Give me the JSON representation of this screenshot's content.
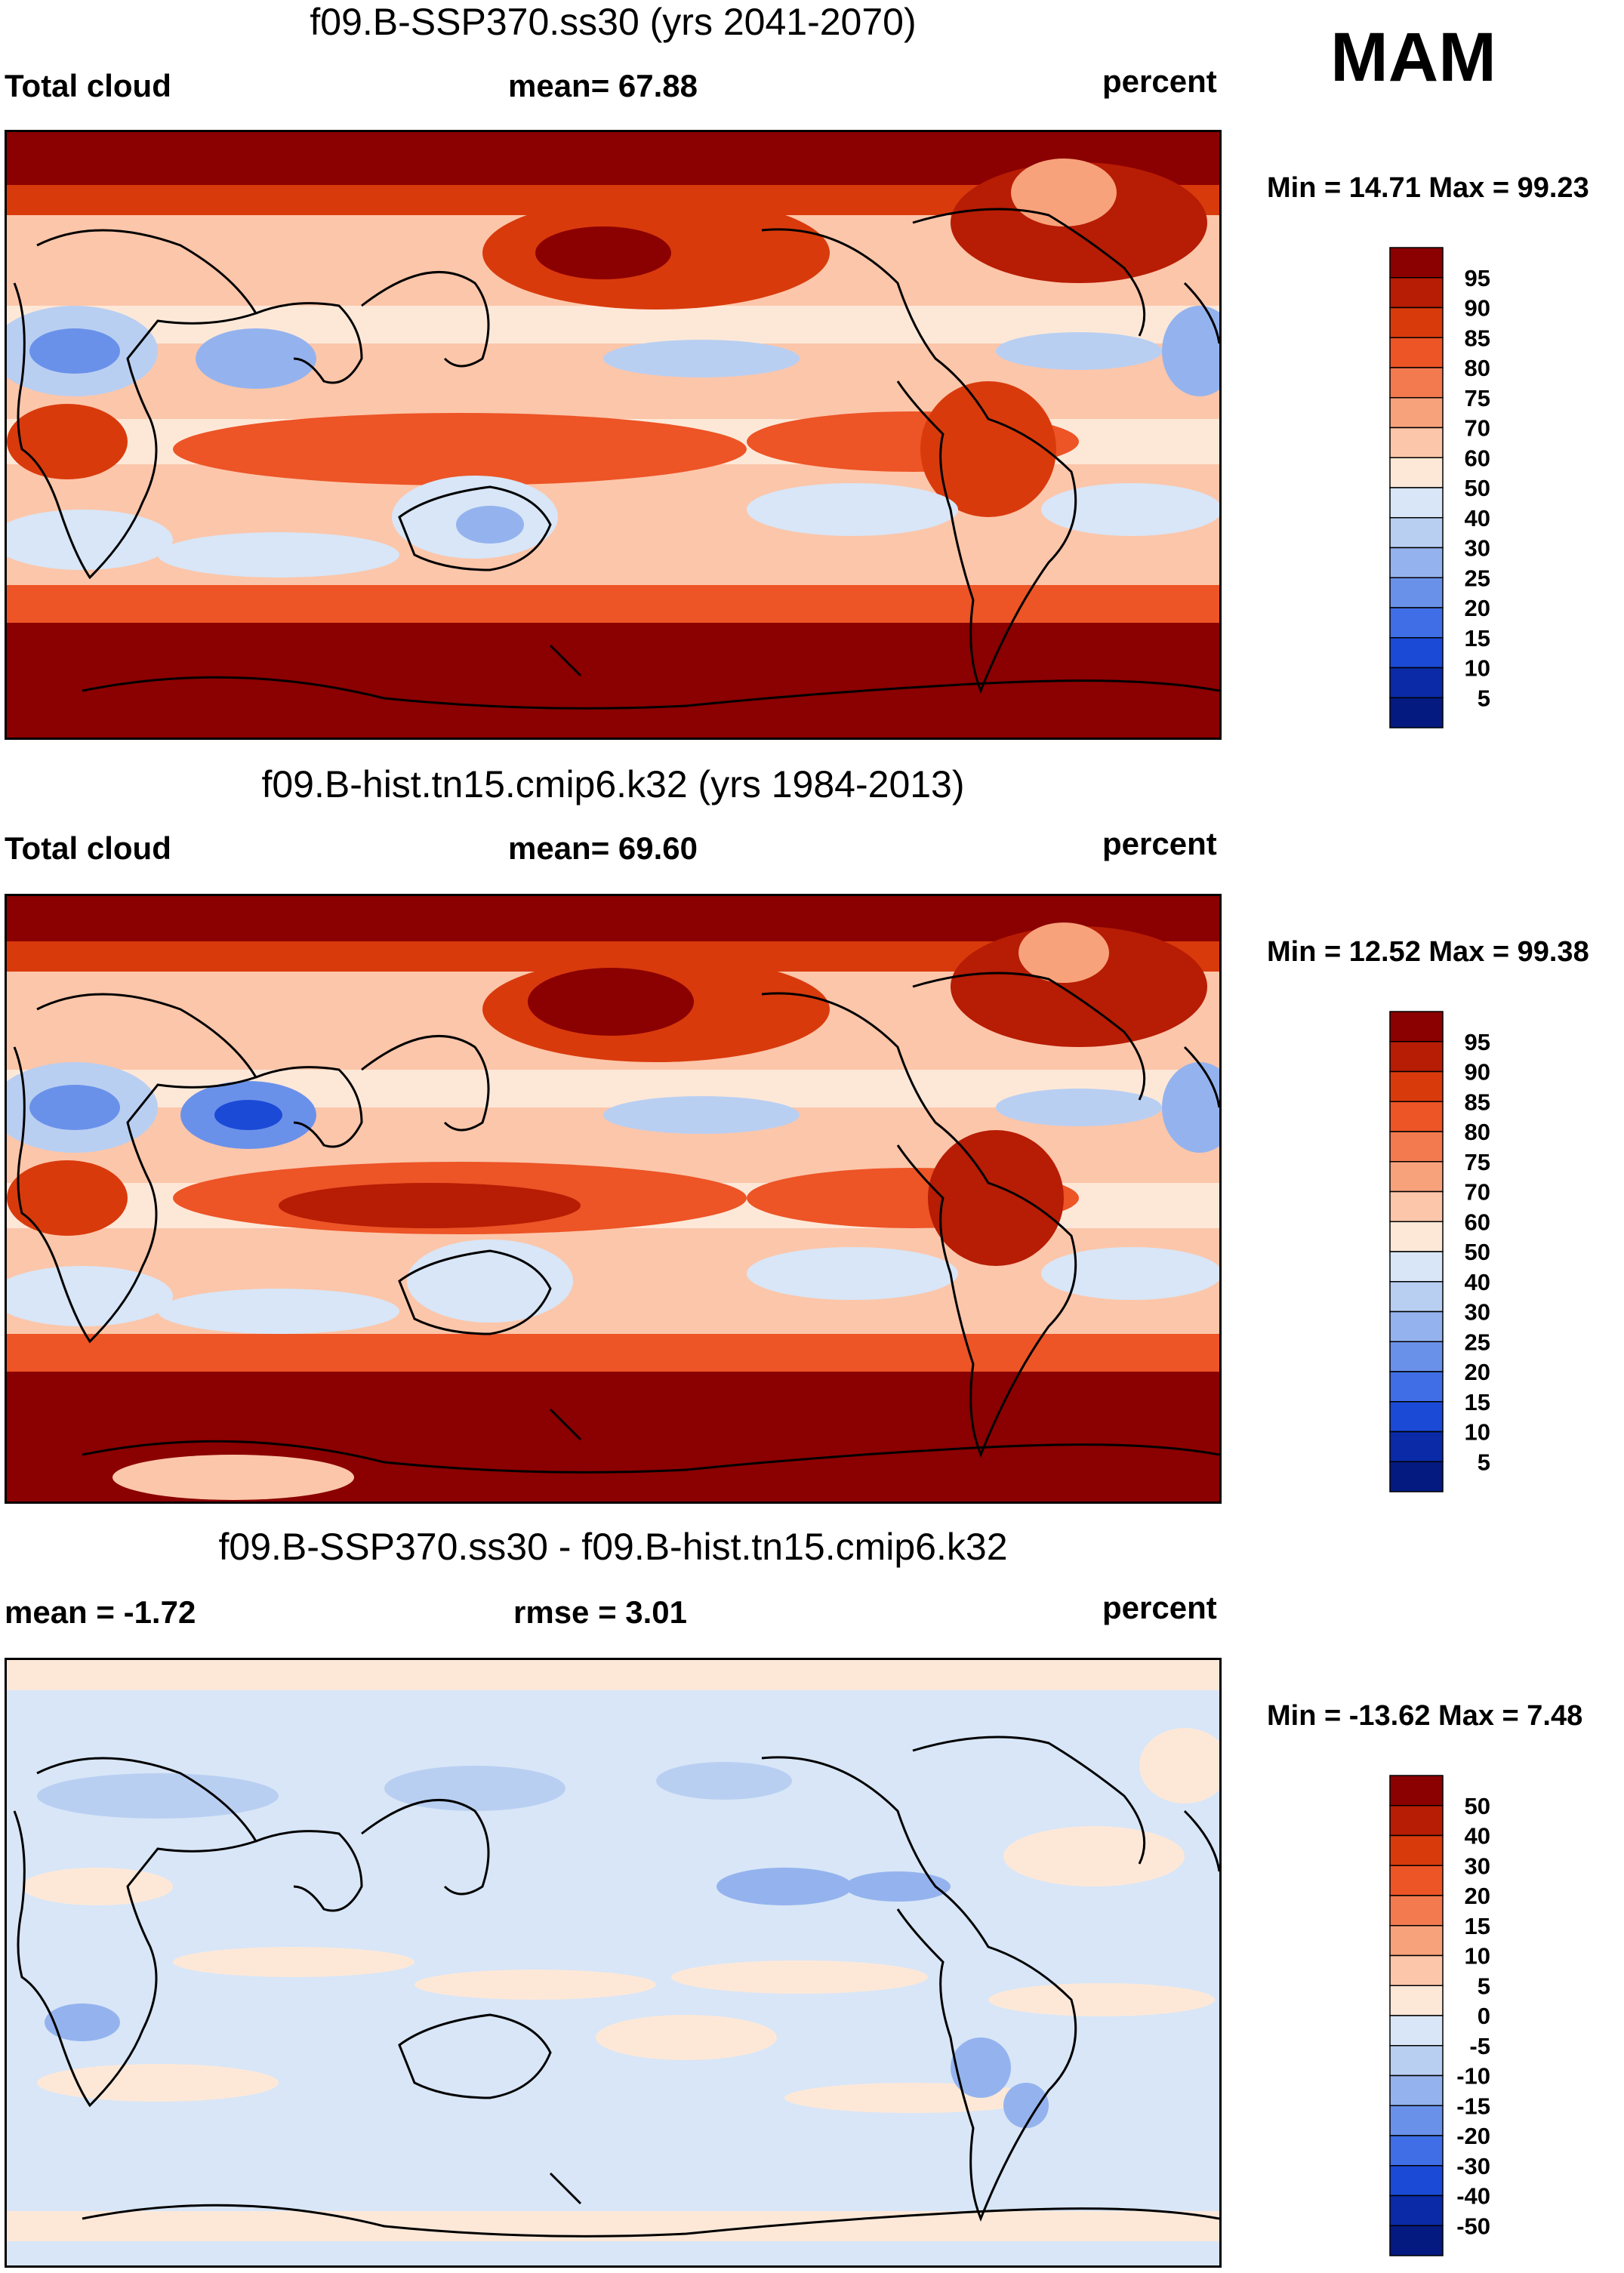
{
  "season": "MAM",
  "units_label": "percent",
  "panels": [
    {
      "id": "future",
      "title": "f09.B-SSP370.ss30 (yrs 2041-2070)",
      "left_label": "Total cloud",
      "center_label": "mean=  67.88",
      "right_label": "percent",
      "minmax": "Min =  14.71 Max =  99.23",
      "colorbar": {
        "levels": [
          "95",
          "90",
          "85",
          "80",
          "75",
          "70",
          "60",
          "50",
          "40",
          "30",
          "25",
          "20",
          "15",
          "10",
          "5"
        ],
        "colors": [
          "#8b0000",
          "#b71c04",
          "#d93a0c",
          "#ed5426",
          "#f37a4f",
          "#f8a27b",
          "#fcc6aa",
          "#fde8d8",
          "#d8e6f7",
          "#b9cff2",
          "#94b3ee",
          "#6a91ea",
          "#3f6ee6",
          "#1b4ad6",
          "#0a2aa8",
          "#051a80"
        ]
      }
    },
    {
      "id": "hist",
      "title": "f09.B-hist.tn15.cmip6.k32 (yrs 1984-2013)",
      "left_label": "Total cloud",
      "center_label": "mean=  69.60",
      "right_label": "percent",
      "minmax": "Min =  12.52 Max =  99.38",
      "colorbar": {
        "levels": [
          "95",
          "90",
          "85",
          "80",
          "75",
          "70",
          "60",
          "50",
          "40",
          "30",
          "25",
          "20",
          "15",
          "10",
          "5"
        ],
        "colors": [
          "#8b0000",
          "#b71c04",
          "#d93a0c",
          "#ed5426",
          "#f37a4f",
          "#f8a27b",
          "#fcc6aa",
          "#fde8d8",
          "#d8e6f7",
          "#b9cff2",
          "#94b3ee",
          "#6a91ea",
          "#3f6ee6",
          "#1b4ad6",
          "#0a2aa8",
          "#051a80"
        ]
      }
    },
    {
      "id": "diff",
      "title": "f09.B-SSP370.ss30 - f09.B-hist.tn15.cmip6.k32",
      "left_label": "mean =  -1.72",
      "center_label": "rmse =    3.01",
      "right_label": "percent",
      "minmax": "Min = -13.62 Max =   7.48",
      "colorbar": {
        "levels": [
          "50",
          "40",
          "30",
          "20",
          "15",
          "10",
          "5",
          "0",
          "-5",
          "-10",
          "-15",
          "-20",
          "-30",
          "-40",
          "-50"
        ],
        "colors": [
          "#8b0000",
          "#b71c04",
          "#d93a0c",
          "#ed5426",
          "#f37a4f",
          "#f8a27b",
          "#fcc6aa",
          "#fde8d8",
          "#d8e6f7",
          "#b9cff2",
          "#94b3ee",
          "#6a91ea",
          "#3f6ee6",
          "#1b4ad6",
          "#0a2aa8",
          "#051a80"
        ]
      }
    }
  ]
}
